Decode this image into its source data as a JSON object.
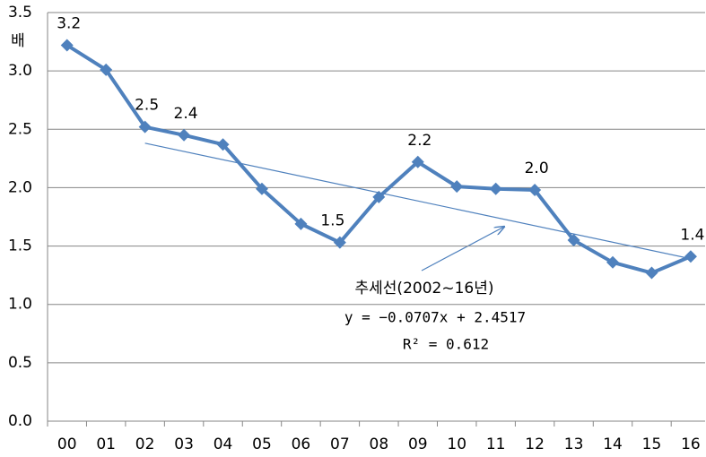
{
  "chart_data": {
    "type": "line",
    "y_unit": "배",
    "categories": [
      "00",
      "01",
      "02",
      "03",
      "04",
      "05",
      "06",
      "07",
      "08",
      "09",
      "10",
      "11",
      "12",
      "13",
      "14",
      "15",
      "16"
    ],
    "series": [
      {
        "color": "#4f81bd",
        "values": [
          3.22,
          3.01,
          2.52,
          2.45,
          2.37,
          1.99,
          1.69,
          1.53,
          1.92,
          2.22,
          2.01,
          1.99,
          1.98,
          1.55,
          1.36,
          1.27,
          1.41
        ],
        "value_labels": [
          "3.2",
          null,
          "2.5",
          "2.4",
          null,
          null,
          null,
          "1.5",
          null,
          "2.2",
          null,
          null,
          "2.0",
          null,
          null,
          null,
          "1.4"
        ]
      }
    ],
    "ylim": [
      0,
      3.5
    ],
    "yticks": [
      {
        "value": 0,
        "label": "0.0"
      },
      0.5,
      {
        "value": 1,
        "label": "1.0"
      },
      1.5,
      {
        "value": 2,
        "label": "2.0"
      },
      2.5,
      {
        "value": 3,
        "label": "3.0"
      },
      3.5
    ],
    "grid": true,
    "trend": {
      "slope": -0.0707,
      "intercept": 2.4517,
      "r2": 0.612,
      "label": "추세선(2002~16년)",
      "equation": "y = −0.0707x + 2.4517",
      "r2_label": "R² = 0.612"
    }
  }
}
